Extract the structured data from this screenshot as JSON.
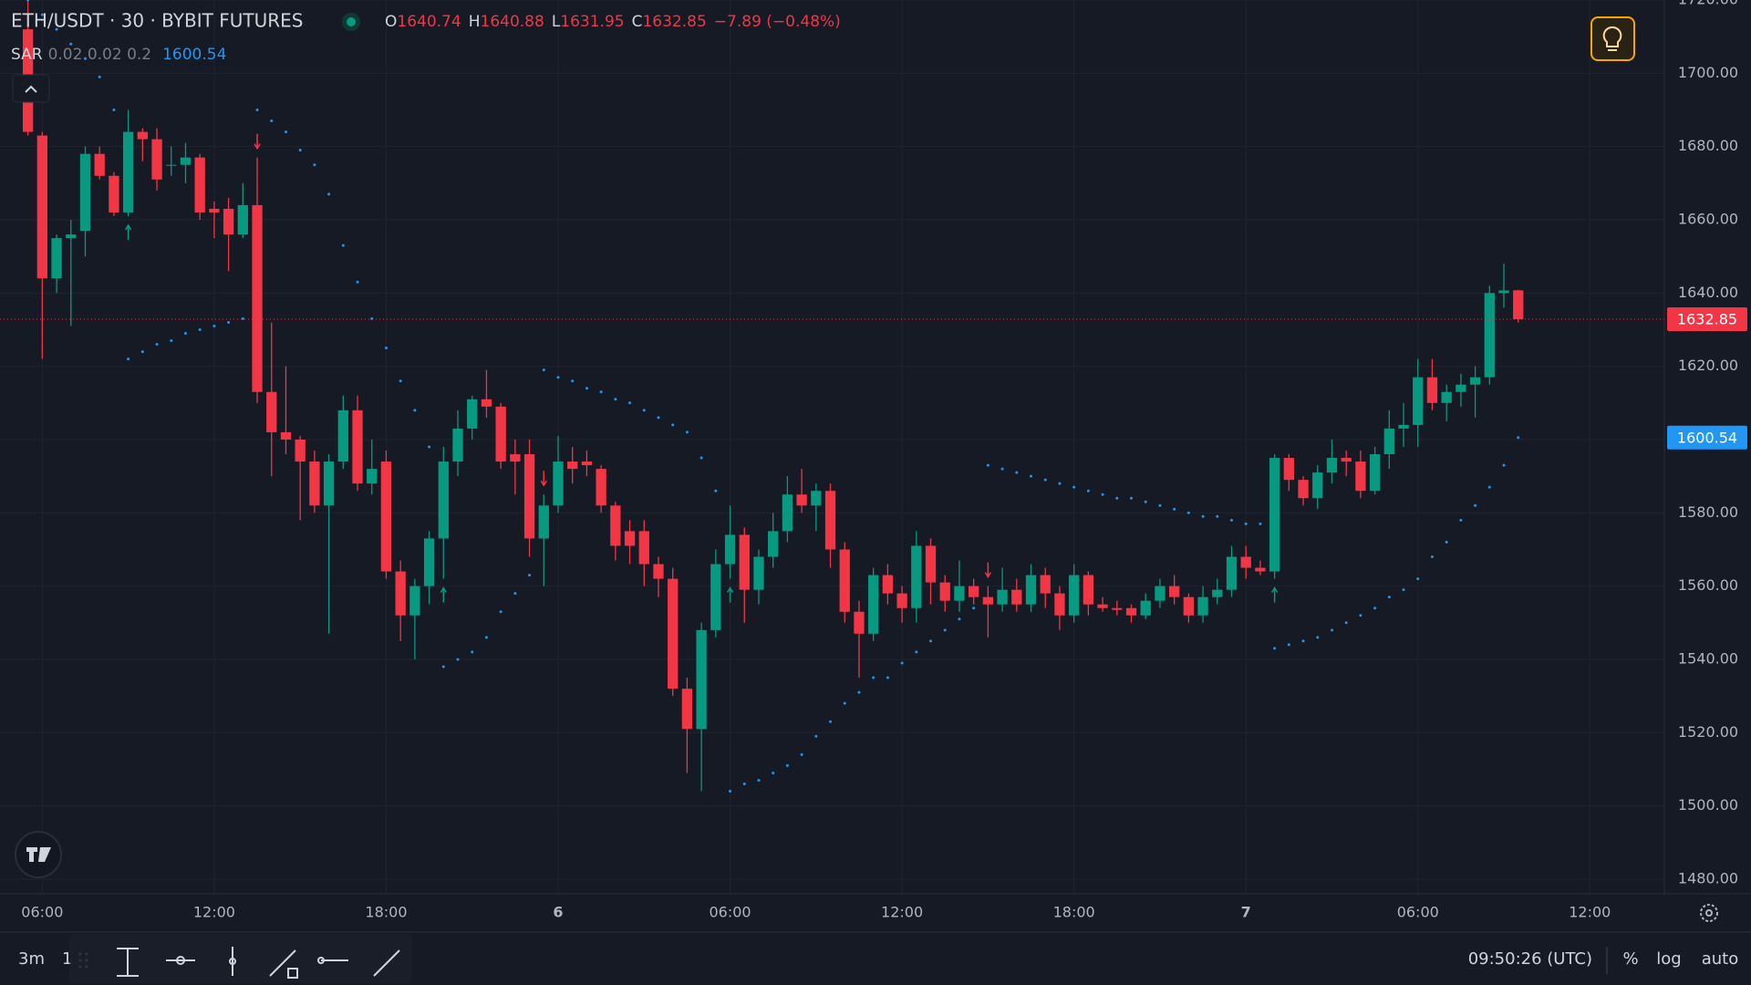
{
  "chart_data": {
    "type": "candlestick",
    "title": "ETH/USDT · 30 · BYBIT FUTURES",
    "ohlc_labels": [
      "O",
      "H",
      "L",
      "C"
    ],
    "change": "−7.89 (−0.48%)",
    "up_color": "#089981",
    "down_color": "#f23645",
    "open": [
      1712,
      1683,
      1644,
      1655,
      1657,
      1678,
      1672,
      1662,
      1684,
      1682,
      1675,
      1675,
      1677,
      1663,
      1663,
      1656,
      1664,
      1613,
      1602,
      1600,
      1594,
      1582,
      1594,
      1608,
      1588,
      1594,
      1564,
      1552,
      1560,
      1573,
      1594,
      1603,
      1611,
      1609,
      1596,
      1596,
      1573,
      1582,
      1594,
      1594,
      1592,
      1582,
      1575,
      1575,
      1566,
      1562,
      1532,
      1521,
      1548,
      1566,
      1574,
      1559,
      1568,
      1575,
      1585,
      1582,
      1586,
      1570,
      1553,
      1547,
      1563,
      1558,
      1554,
      1571,
      1561,
      1556,
      1560,
      1557,
      1555,
      1559,
      1555,
      1563,
      1558,
      1552,
      1563,
      1555,
      1554,
      1554,
      1552,
      1556,
      1560,
      1557,
      1552,
      1557,
      1559,
      1568,
      1565,
      1564,
      1595,
      1589,
      1584,
      1591,
      1595,
      1594,
      1586,
      1596,
      1603,
      1604,
      1617,
      1610,
      1613,
      1615,
      1617,
      1640,
      1640.74
    ],
    "high": [
      1720,
      1684,
      1656,
      1660,
      1680,
      1680,
      1673,
      1690,
      1685,
      1685,
      1680,
      1681,
      1678,
      1665,
      1666,
      1670,
      1677,
      1632,
      1620,
      1601,
      1597,
      1596,
      1612,
      1612,
      1600,
      1597,
      1567,
      1562,
      1575,
      1598,
      1608,
      1612,
      1619,
      1610,
      1600,
      1600,
      1585,
      1601,
      1598,
      1597,
      1593,
      1583,
      1578,
      1578,
      1568,
      1565,
      1535,
      1550,
      1570,
      1582,
      1576,
      1570,
      1580,
      1590,
      1592,
      1588,
      1588,
      1572,
      1556,
      1565,
      1566,
      1560,
      1575,
      1573,
      1563,
      1567,
      1562,
      1560,
      1565,
      1562,
      1566,
      1565,
      1560,
      1566,
      1564,
      1557,
      1556,
      1555,
      1558,
      1562,
      1563,
      1558,
      1560,
      1562,
      1571,
      1571,
      1567,
      1596,
      1596,
      1590,
      1593,
      1600,
      1597,
      1597,
      1598,
      1608,
      1610,
      1622,
      1622,
      1615,
      1618,
      1620,
      1642,
      1648,
      1640.88
    ],
    "low": [
      1683,
      1622,
      1640,
      1631,
      1650,
      1671,
      1661,
      1661,
      1676,
      1668,
      1672,
      1670,
      1660,
      1655,
      1646,
      1655,
      1610,
      1590,
      1596,
      1578,
      1580,
      1547,
      1592,
      1586,
      1585,
      1562,
      1545,
      1540,
      1555,
      1562,
      1590,
      1600,
      1606,
      1592,
      1585,
      1568,
      1560,
      1580,
      1588,
      1590,
      1580,
      1567,
      1566,
      1560,
      1557,
      1530,
      1509,
      1504,
      1546,
      1562,
      1550,
      1555,
      1565,
      1572,
      1580,
      1575,
      1565,
      1550,
      1535,
      1545,
      1555,
      1550,
      1550,
      1555,
      1553,
      1553,
      1555,
      1546,
      1553,
      1553,
      1553,
      1554,
      1548,
      1550,
      1552,
      1553,
      1552,
      1550,
      1551,
      1554,
      1555,
      1550,
      1550,
      1555,
      1557,
      1562,
      1563,
      1562,
      1586,
      1582,
      1581,
      1588,
      1590,
      1584,
      1585,
      1592,
      1598,
      1598,
      1608,
      1605,
      1609,
      1606,
      1615,
      1636,
      1631.95
    ],
    "close": [
      1684,
      1644,
      1655,
      1656,
      1678,
      1672,
      1662,
      1684,
      1682,
      1671,
      1675,
      1677,
      1662,
      1662,
      1656,
      1664,
      1613,
      1602,
      1600,
      1594,
      1582,
      1594,
      1608,
      1588,
      1592,
      1564,
      1552,
      1560,
      1573,
      1594,
      1603,
      1611,
      1609,
      1594,
      1594,
      1573,
      1582,
      1594,
      1592,
      1593,
      1582,
      1571,
      1571,
      1566,
      1562,
      1532,
      1521,
      1548,
      1566,
      1574,
      1559,
      1568,
      1575,
      1585,
      1582,
      1586,
      1570,
      1553,
      1547,
      1563,
      1558,
      1554,
      1571,
      1561,
      1556,
      1560,
      1557,
      1555,
      1559,
      1555,
      1563,
      1558,
      1552,
      1563,
      1555,
      1554,
      1553.5,
      1552,
      1556,
      1560,
      1557,
      1552,
      1557,
      1559,
      1568,
      1565,
      1564,
      1595,
      1589,
      1584,
      1591,
      1595,
      1594,
      1586,
      1596,
      1603,
      1604,
      1617,
      1610,
      1613,
      1615,
      1617,
      1640,
      1640.7,
      1632.85
    ],
    "indicator": {
      "name": "SAR",
      "params": "0.02 0.02 0.2",
      "color": "#2196f3",
      "values": [
        1720,
        1716,
        1712,
        1708,
        1704,
        1699,
        1690,
        1622,
        1624,
        1626,
        1627,
        1629,
        1630,
        1631,
        1632,
        1633,
        1690,
        1687,
        1684,
        1679,
        1675,
        1667,
        1653,
        1643,
        1633,
        1625,
        1616,
        1608,
        1598,
        1538,
        1540,
        1542,
        1546,
        1553,
        1558,
        1563,
        1619,
        1617,
        1616,
        1614,
        1613,
        1611,
        1610,
        1608,
        1606,
        1604,
        1602,
        1595,
        1586,
        1504,
        1506,
        1507,
        1509,
        1511,
        1514,
        1519,
        1523,
        1528,
        1531,
        1535,
        1535,
        1539,
        1542,
        1545,
        1548,
        1551,
        1554,
        1593,
        1592,
        1591,
        1590,
        1589,
        1588,
        1587,
        1586,
        1585,
        1584,
        1584,
        1583,
        1582,
        1581,
        1580,
        1579,
        1579,
        1578,
        1577,
        1577,
        1543,
        1544,
        1545,
        1546,
        1548,
        1550,
        1552,
        1554,
        1557,
        1559,
        1562,
        1568,
        1572,
        1578,
        1582,
        1587,
        1593,
        1600.54
      ]
    },
    "xlim": [
      -1.95,
      114.2
    ],
    "xticks": [
      {
        "value": 1,
        "label": "06:00"
      },
      {
        "value": 13,
        "label": "12:00"
      },
      {
        "value": 25,
        "label": "18:00"
      },
      {
        "value": 37,
        "label": "6"
      },
      {
        "value": 49,
        "label": "06:00"
      },
      {
        "value": 61,
        "label": "12:00"
      },
      {
        "value": 73,
        "label": "18:00"
      },
      {
        "value": 85,
        "label": "7"
      },
      {
        "value": 97,
        "label": "06:00"
      },
      {
        "value": 109,
        "label": "12:00"
      }
    ],
    "ylim": [
      1476,
      1720
    ],
    "yticks": [
      {
        "value": 1480,
        "label": "1480.00"
      },
      {
        "value": 1500,
        "label": "1500.00"
      },
      {
        "value": 1520,
        "label": "1520.00"
      },
      {
        "value": 1540,
        "label": "1540.00"
      },
      {
        "value": 1560,
        "label": "1560.00"
      },
      {
        "value": 1580,
        "label": "1580.00"
      },
      {
        "value": 1600,
        "label": "1600.00"
      },
      {
        "value": 1620,
        "label": "1620.00"
      },
      {
        "value": 1640,
        "label": "1640.00"
      },
      {
        "value": 1660,
        "label": "1660.00"
      },
      {
        "value": 1680,
        "label": "1680.00"
      },
      {
        "value": 1700,
        "label": "1700.00"
      },
      {
        "value": 1720,
        "label": "1720.00"
      }
    ],
    "grid": true
  },
  "toolbar": {
    "left": [
      "3m",
      "1"
    ],
    "clock": "09:50:26 (UTC)",
    "right": [
      "%",
      "log",
      "auto"
    ]
  }
}
